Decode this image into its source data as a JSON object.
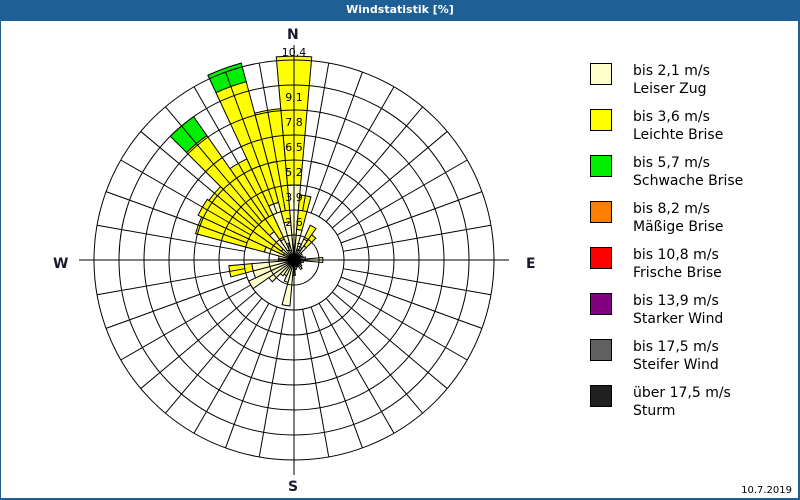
{
  "window": {
    "title": "Windstatistik [%]",
    "date": "10.7.2019"
  },
  "compass": {
    "n": "N",
    "e": "E",
    "s": "S",
    "w": "W"
  },
  "legend": [
    {
      "range": "bis 2,1 m/s",
      "name": "Leiser Zug",
      "color": "#ffffcc"
    },
    {
      "range": "bis 3,6 m/s",
      "name": "Leichte Brise",
      "color": "#ffff00"
    },
    {
      "range": "bis 5,7 m/s",
      "name": "Schwache Brise",
      "color": "#00ee00"
    },
    {
      "range": "bis 8,2 m/s",
      "name": "Mäßige Brise",
      "color": "#ff8000"
    },
    {
      "range": "bis 10,8 m/s",
      "name": "Frische Brise",
      "color": "#ff0000"
    },
    {
      "range": "bis 13,9 m/s",
      "name": "Starker Wind",
      "color": "#800080"
    },
    {
      "range": "bis 17,5 m/s",
      "name": "Steifer Wind",
      "color": "#606060"
    },
    {
      "range": "über 17,5 m/s",
      "name": "Sturm",
      "color": "#202020"
    }
  ],
  "chart_data": {
    "type": "wind-rose",
    "title": "Windstatistik [%]",
    "unit": "%",
    "ring_labels": [
      "1,3",
      "2,6",
      "3,9",
      "5,2",
      "6,5",
      "7,8",
      "9,1",
      "10,4"
    ],
    "rmax": 10.4,
    "sector_width_deg": 10,
    "series_names": [
      "bis 2,1 m/s",
      "bis 3,6 m/s",
      "bis 5,7 m/s"
    ],
    "series_colors": [
      "#ffffcc",
      "#ffff00",
      "#00ee00"
    ],
    "sectors": [
      {
        "dir": 0,
        "cum": [
          3.9,
          10.6,
          10.6
        ]
      },
      {
        "dir": 10,
        "cum": [
          1.6,
          3.4,
          3.4
        ]
      },
      {
        "dir": 20,
        "cum": [
          0.6,
          0.6,
          0.6
        ]
      },
      {
        "dir": 30,
        "cum": [
          1.2,
          2.0,
          2.0
        ]
      },
      {
        "dir": 40,
        "cum": [
          0.9,
          1.6,
          1.6
        ]
      },
      {
        "dir": 50,
        "cum": [
          0.5,
          0.5,
          0.5
        ]
      },
      {
        "dir": 60,
        "cum": [
          0.4,
          0.4,
          0.4
        ]
      },
      {
        "dir": 70,
        "cum": [
          0.5,
          0.5,
          0.5
        ]
      },
      {
        "dir": 80,
        "cum": [
          0.6,
          0.6,
          0.6
        ]
      },
      {
        "dir": 90,
        "cum": [
          1.5,
          1.5,
          1.5
        ]
      },
      {
        "dir": 100,
        "cum": [
          0.5,
          0.5,
          0.5
        ]
      },
      {
        "dir": 110,
        "cum": [
          0.4,
          0.4,
          0.4
        ]
      },
      {
        "dir": 120,
        "cum": [
          0.4,
          0.4,
          0.4
        ]
      },
      {
        "dir": 130,
        "cum": [
          0.5,
          0.5,
          0.5
        ]
      },
      {
        "dir": 140,
        "cum": [
          0.6,
          0.6,
          0.6
        ]
      },
      {
        "dir": 150,
        "cum": [
          0.4,
          0.4,
          0.4
        ]
      },
      {
        "dir": 160,
        "cum": [
          0.4,
          0.4,
          0.4
        ]
      },
      {
        "dir": 170,
        "cum": [
          0.5,
          0.5,
          0.5
        ]
      },
      {
        "dir": 180,
        "cum": [
          0.8,
          0.8,
          0.8
        ]
      },
      {
        "dir": 190,
        "cum": [
          2.4,
          2.4,
          2.4
        ]
      },
      {
        "dir": 200,
        "cum": [
          1.2,
          1.2,
          1.2
        ]
      },
      {
        "dir": 210,
        "cum": [
          0.9,
          0.9,
          0.9
        ]
      },
      {
        "dir": 220,
        "cum": [
          1.0,
          1.0,
          1.0
        ]
      },
      {
        "dir": 230,
        "cum": [
          1.6,
          1.6,
          1.6
        ]
      },
      {
        "dir": 240,
        "cum": [
          2.6,
          2.6,
          2.6
        ]
      },
      {
        "dir": 250,
        "cum": [
          2.2,
          2.2,
          2.2
        ]
      },
      {
        "dir": 260,
        "cum": [
          2.2,
          3.4,
          3.4
        ]
      },
      {
        "dir": 270,
        "cum": [
          0.8,
          0.8,
          0.8
        ]
      },
      {
        "dir": 280,
        "cum": [
          0.8,
          0.8,
          0.8
        ]
      },
      {
        "dir": 290,
        "cum": [
          1.6,
          5.3,
          5.3
        ]
      },
      {
        "dir": 300,
        "cum": [
          0.6,
          5.5,
          5.5
        ]
      },
      {
        "dir": 310,
        "cum": [
          0.8,
          5.4,
          5.4
        ]
      },
      {
        "dir": 320,
        "cum": [
          1.8,
          7.9,
          9.1
        ]
      },
      {
        "dir": 330,
        "cum": [
          1.2,
          5.8,
          5.8
        ]
      },
      {
        "dir": 340,
        "cum": [
          3.1,
          9.6,
          10.6
        ]
      },
      {
        "dir": 350,
        "cum": [
          2.0,
          7.9,
          7.9
        ]
      }
    ]
  }
}
